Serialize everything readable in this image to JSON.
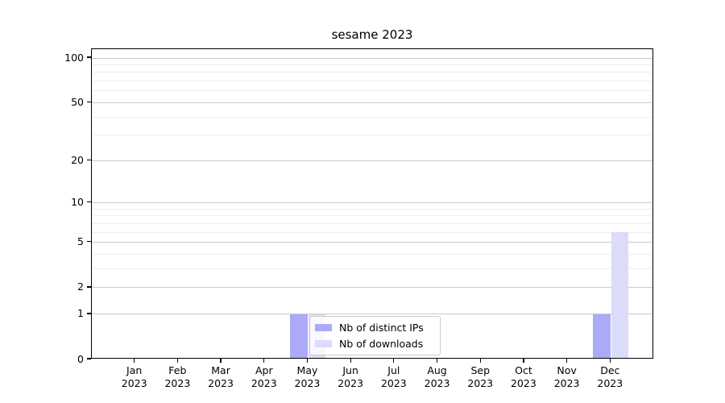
{
  "chart_data": {
    "type": "bar",
    "title": "sesame 2023",
    "xlabel": "",
    "ylabel": "",
    "months": [
      "Jan",
      "Feb",
      "Mar",
      "Apr",
      "May",
      "Jun",
      "Jul",
      "Aug",
      "Sep",
      "Oct",
      "Nov",
      "Dec"
    ],
    "year_label": "2023",
    "series": [
      {
        "name": "Nb of distinct IPs",
        "color": "#aaaaf8",
        "values": [
          0,
          0,
          0,
          0,
          1,
          0,
          0,
          0,
          0,
          0,
          0,
          1
        ]
      },
      {
        "name": "Nb of downloads",
        "color": "#dbdbfa",
        "values": [
          0,
          0,
          0,
          0,
          1,
          0,
          0,
          0,
          0,
          0,
          0,
          6
        ]
      }
    ],
    "y_axis": {
      "scale": "log(value+1)",
      "ylim": [
        0,
        100
      ],
      "major_ticks": [
        0,
        1,
        2,
        5,
        10,
        20,
        50,
        100
      ],
      "minor_ticks": [
        3,
        4,
        6,
        7,
        8,
        9,
        30,
        40,
        60,
        70,
        80,
        90
      ]
    },
    "grid": true,
    "legend_position": "lower center-left inside plot"
  }
}
